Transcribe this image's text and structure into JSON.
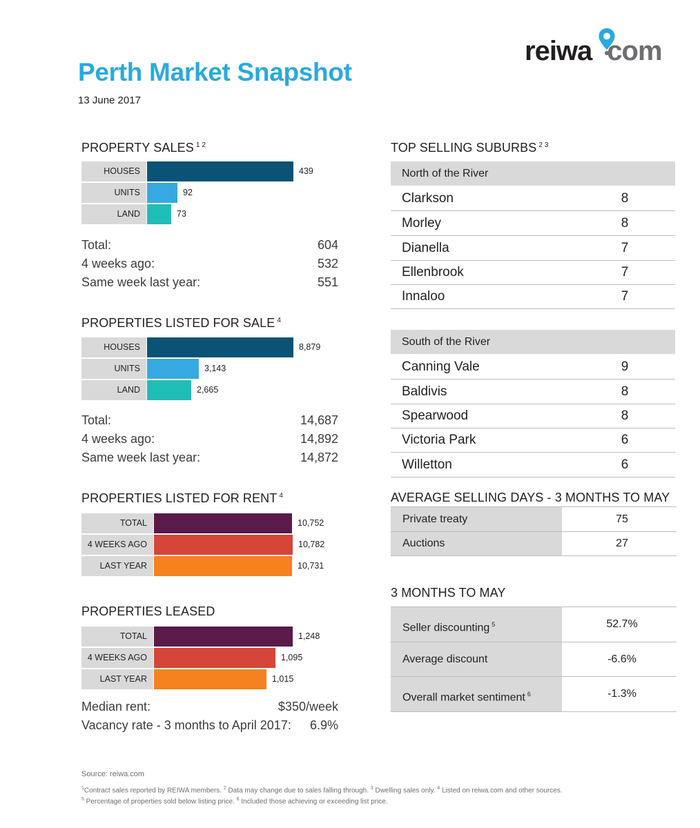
{
  "header": {
    "title": "Perth Market Snapshot",
    "date": "13 June 2017",
    "logo_left": "reiwa",
    "logo_right": "com"
  },
  "colors": {
    "title_blue": "#2aa9e0",
    "houses": "#0a5377",
    "units": "#36a9e1",
    "land": "#20bdb7",
    "total": "#5a1a4a",
    "four_weeks_ago": "#d5453a",
    "last_year": "#f5811f",
    "label_grey": "#d9d9da"
  },
  "property_sales": {
    "title": "PROPERTY SALES",
    "sup": "1 2",
    "bars": [
      {
        "label": "HOUSES",
        "value": 439,
        "value_text": "439"
      },
      {
        "label": "UNITS",
        "value": 92,
        "value_text": "92"
      },
      {
        "label": "LAND",
        "value": 73,
        "value_text": "73"
      }
    ],
    "stats": [
      {
        "label": "Total:",
        "value": "604"
      },
      {
        "label": "4 weeks ago:",
        "value": "532"
      },
      {
        "label": "Same week last year:",
        "value": "551"
      }
    ]
  },
  "listed_for_sale": {
    "title": "PROPERTIES LISTED FOR SALE",
    "sup": "4",
    "bars": [
      {
        "label": "HOUSES",
        "value": 8879,
        "value_text": "8,879"
      },
      {
        "label": "UNITS",
        "value": 3143,
        "value_text": "3,143"
      },
      {
        "label": "LAND",
        "value": 2665,
        "value_text": "2,665"
      }
    ],
    "stats": [
      {
        "label": "Total:",
        "value": "14,687"
      },
      {
        "label": "4 weeks ago:",
        "value": "14,892"
      },
      {
        "label": "Same week last year:",
        "value": "14,872"
      }
    ]
  },
  "listed_for_rent": {
    "title": "PROPERTIES LISTED FOR RENT",
    "sup": "4",
    "bars": [
      {
        "label": "TOTAL",
        "value": 10752,
        "value_text": "10,752"
      },
      {
        "label": "4 WEEKS AGO",
        "value": 10782,
        "value_text": "10,782"
      },
      {
        "label": "LAST YEAR",
        "value": 10731,
        "value_text": "10,731"
      }
    ]
  },
  "leased": {
    "title": "PROPERTIES LEASED",
    "bars": [
      {
        "label": "TOTAL",
        "value": 1248,
        "value_text": "1,248"
      },
      {
        "label": "4 WEEKS AGO",
        "value": 1095,
        "value_text": "1,095"
      },
      {
        "label": "LAST YEAR",
        "value": 1015,
        "value_text": "1,015"
      }
    ],
    "stats": [
      {
        "label": "Median rent:",
        "value": "$350/week"
      },
      {
        "label": "Vacancy rate - 3 months to April 2017:",
        "value": "6.9%"
      }
    ]
  },
  "top_suburbs": {
    "title": "TOP SELLING SUBURBS",
    "sup": "2 3",
    "north": {
      "heading": "North of the River",
      "rows": [
        {
          "name": "Clarkson",
          "count": "8"
        },
        {
          "name": "Morley",
          "count": "8"
        },
        {
          "name": "Dianella",
          "count": "7"
        },
        {
          "name": "Ellenbrook",
          "count": "7"
        },
        {
          "name": "Innaloo",
          "count": "7"
        }
      ]
    },
    "south": {
      "heading": "South of the River",
      "rows": [
        {
          "name": "Canning Vale",
          "count": "9"
        },
        {
          "name": "Baldivis",
          "count": "8"
        },
        {
          "name": "Spearwood",
          "count": "8"
        },
        {
          "name": "Victoria Park",
          "count": "6"
        },
        {
          "name": "Willetton",
          "count": "6"
        }
      ]
    }
  },
  "avg_selling_days": {
    "title": "AVERAGE SELLING DAYS - 3 MONTHS TO MAY",
    "rows": [
      {
        "label": "Private treaty",
        "value": "75"
      },
      {
        "label": "Auctions",
        "value": "27"
      }
    ]
  },
  "three_months": {
    "title": "3 MONTHS TO MAY",
    "rows": [
      {
        "label": "Seller discounting",
        "sup": "5",
        "value": "52.7%"
      },
      {
        "label": "Average discount",
        "sup": "",
        "value": "-6.6%"
      },
      {
        "label": "Overall market sentiment",
        "sup": "6",
        "value": "-1.3%"
      }
    ]
  },
  "footer": {
    "source": "Source: reiwa.com",
    "note1": [
      {
        "sup": "1",
        "text": "Contract sales reported by REIWA members. "
      },
      {
        "sup": "2",
        "text": " Data may change due to sales falling through. "
      },
      {
        "sup": "3",
        "text": " Dwelling sales only. "
      },
      {
        "sup": "4",
        "text": " Listed on reiwa.com and other sources."
      }
    ],
    "note2": [
      {
        "sup": "5",
        "text": " Percentage of properties sold below listing price. "
      },
      {
        "sup": "6",
        "text": " Included those achieving or exceeding list price."
      }
    ]
  }
}
